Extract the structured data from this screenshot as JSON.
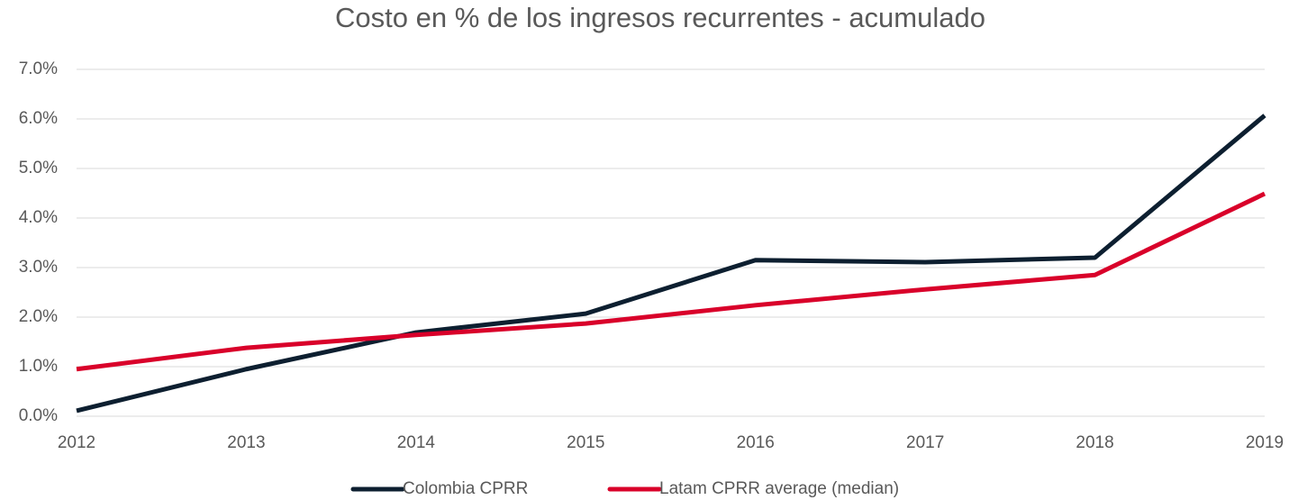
{
  "chart_data": {
    "type": "line",
    "title": "Costo en % de los  ingresos recurrentes - acumulado",
    "categories": [
      "2012",
      "2013",
      "2014",
      "2015",
      "2016",
      "2017",
      "2018",
      "2019"
    ],
    "series": [
      {
        "name": "Colombia CPRR",
        "color": "#0d1f30",
        "values": [
          0.11,
          0.95,
          1.69,
          2.07,
          3.15,
          3.11,
          3.2,
          6.07
        ]
      },
      {
        "name": "Latam CPRR average (median)",
        "color": "#d9002a",
        "values": [
          0.95,
          1.38,
          1.64,
          1.87,
          2.24,
          2.56,
          2.85,
          4.49
        ]
      }
    ],
    "ylim": [
      0,
      7
    ],
    "yticks": [
      {
        "value": 0,
        "label": "0.0%"
      },
      {
        "value": 1,
        "label": "1.0%"
      },
      {
        "value": 2,
        "label": "2.0%"
      },
      {
        "value": 3,
        "label": "3.0%"
      },
      {
        "value": 4,
        "label": "4.0%"
      },
      {
        "value": 5,
        "label": "5.0%"
      },
      {
        "value": 6,
        "label": "6.0%"
      },
      {
        "value": 7,
        "label": "7.0%"
      }
    ],
    "grid": true,
    "legend": "bottom"
  }
}
